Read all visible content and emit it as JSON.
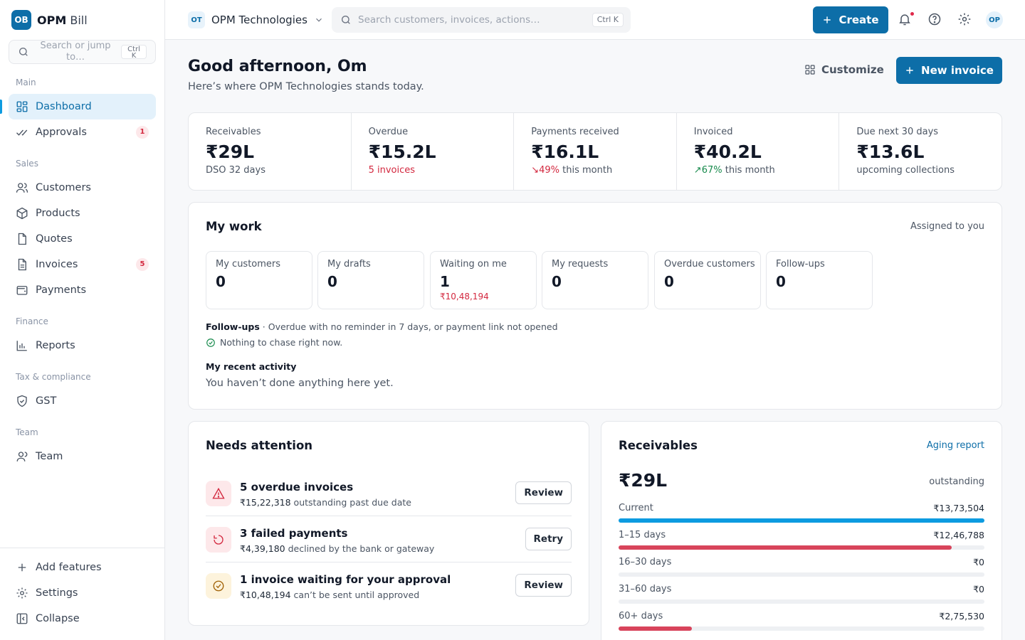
{
  "brand": {
    "logo": "OB",
    "name": "OPM",
    "name_suffix": " Bill"
  },
  "sidebar": {
    "search_placeholder": "Search or jump to…",
    "search_kbd_1": "Ctrl",
    "search_kbd_2": "K",
    "sections": {
      "main": "Main",
      "sales": "Sales",
      "finance": "Finance",
      "tax": "Tax & compliance",
      "team": "Team"
    },
    "items": {
      "dashboard": "Dashboard",
      "approvals": "Approvals",
      "approvals_badge": "1",
      "customers": "Customers",
      "products": "Products",
      "quotes": "Quotes",
      "invoices": "Invoices",
      "invoices_badge": "5",
      "payments": "Payments",
      "reports": "Reports",
      "gst": "GST",
      "team": "Team"
    },
    "footer": {
      "add_features": "Add features",
      "settings": "Settings",
      "collapse": "Collapse"
    }
  },
  "topbar": {
    "org_logo": "OT",
    "org_name": "OPM Technologies",
    "search_placeholder": "Search customers, invoices, actions…",
    "search_kbd": "Ctrl K",
    "create_label": "Create",
    "avatar": "OP"
  },
  "header": {
    "greeting": "Good afternoon, Om",
    "subtitle": "Here’s where OPM Technologies stands today.",
    "customize_label": "Customize",
    "new_invoice_label": "New invoice"
  },
  "kpis": [
    {
      "label": "Receivables",
      "value": "₹29L",
      "sub": "DSO 32 days"
    },
    {
      "label": "Overdue",
      "value": "₹15.2L",
      "sub": "5 invoices"
    },
    {
      "label": "Payments received",
      "value": "₹16.1L",
      "trend": "49%",
      "sub": " this month"
    },
    {
      "label": "Invoiced",
      "value": "₹40.2L",
      "trend": "67%",
      "sub": " this month"
    },
    {
      "label": "Due next 30 days",
      "value": "₹13.6L",
      "sub": "upcoming collections"
    }
  ],
  "my_work": {
    "title": "My work",
    "assigned": "Assigned to you",
    "tiles": [
      {
        "label": "My customers",
        "value": "0"
      },
      {
        "label": "My drafts",
        "value": "0"
      },
      {
        "label": "Waiting on me",
        "value": "1",
        "sub": "₹10,48,194"
      },
      {
        "label": "My requests",
        "value": "0"
      },
      {
        "label": "Overdue customers",
        "value": "0"
      },
      {
        "label": "Follow-ups",
        "value": "0"
      }
    ],
    "followups_title": "Follow-ups",
    "followups_desc": " · Overdue with no reminder in 7 days, or payment link not opened",
    "followups_status": "Nothing to chase right now.",
    "recent_title": "My recent activity",
    "recent_empty": "You haven’t done anything here yet."
  },
  "attention": {
    "title": "Needs attention",
    "items": [
      {
        "title": "5 overdue invoices",
        "amount": "₹15,22,318",
        "desc": " outstanding past due date",
        "action": "Review",
        "icon": "warning-icon"
      },
      {
        "title": "3 failed payments",
        "amount": "₹4,39,180",
        "desc": " declined by the bank or gateway",
        "action": "Retry",
        "icon": "retry-icon"
      },
      {
        "title": "1 invoice waiting for your approval",
        "amount": "₹10,48,194",
        "desc": " can’t be sent until approved",
        "action": "Review",
        "icon": "check-circle-icon"
      }
    ]
  },
  "receivables": {
    "title": "Receivables",
    "link": "Aging report",
    "total": "₹29L",
    "total_label": "outstanding",
    "buckets": [
      {
        "name": "Current",
        "amount": "₹13,73,504",
        "fill": 1.0,
        "color": "#0d9be0"
      },
      {
        "name": "1–15 days",
        "amount": "₹12,46,788",
        "fill": 0.91,
        "color": "#d8445b"
      },
      {
        "name": "16–30 days",
        "amount": "₹0",
        "fill": 0,
        "color": "#d8445b"
      },
      {
        "name": "31–60 days",
        "amount": "₹0",
        "fill": 0,
        "color": "#d8445b"
      },
      {
        "name": "60+ days",
        "amount": "₹2,75,530",
        "fill": 0.2,
        "color": "#d8445b"
      }
    ]
  },
  "colors": {
    "accent": "#0d6ea8",
    "danger": "#d3283f",
    "success": "#178a4c"
  }
}
